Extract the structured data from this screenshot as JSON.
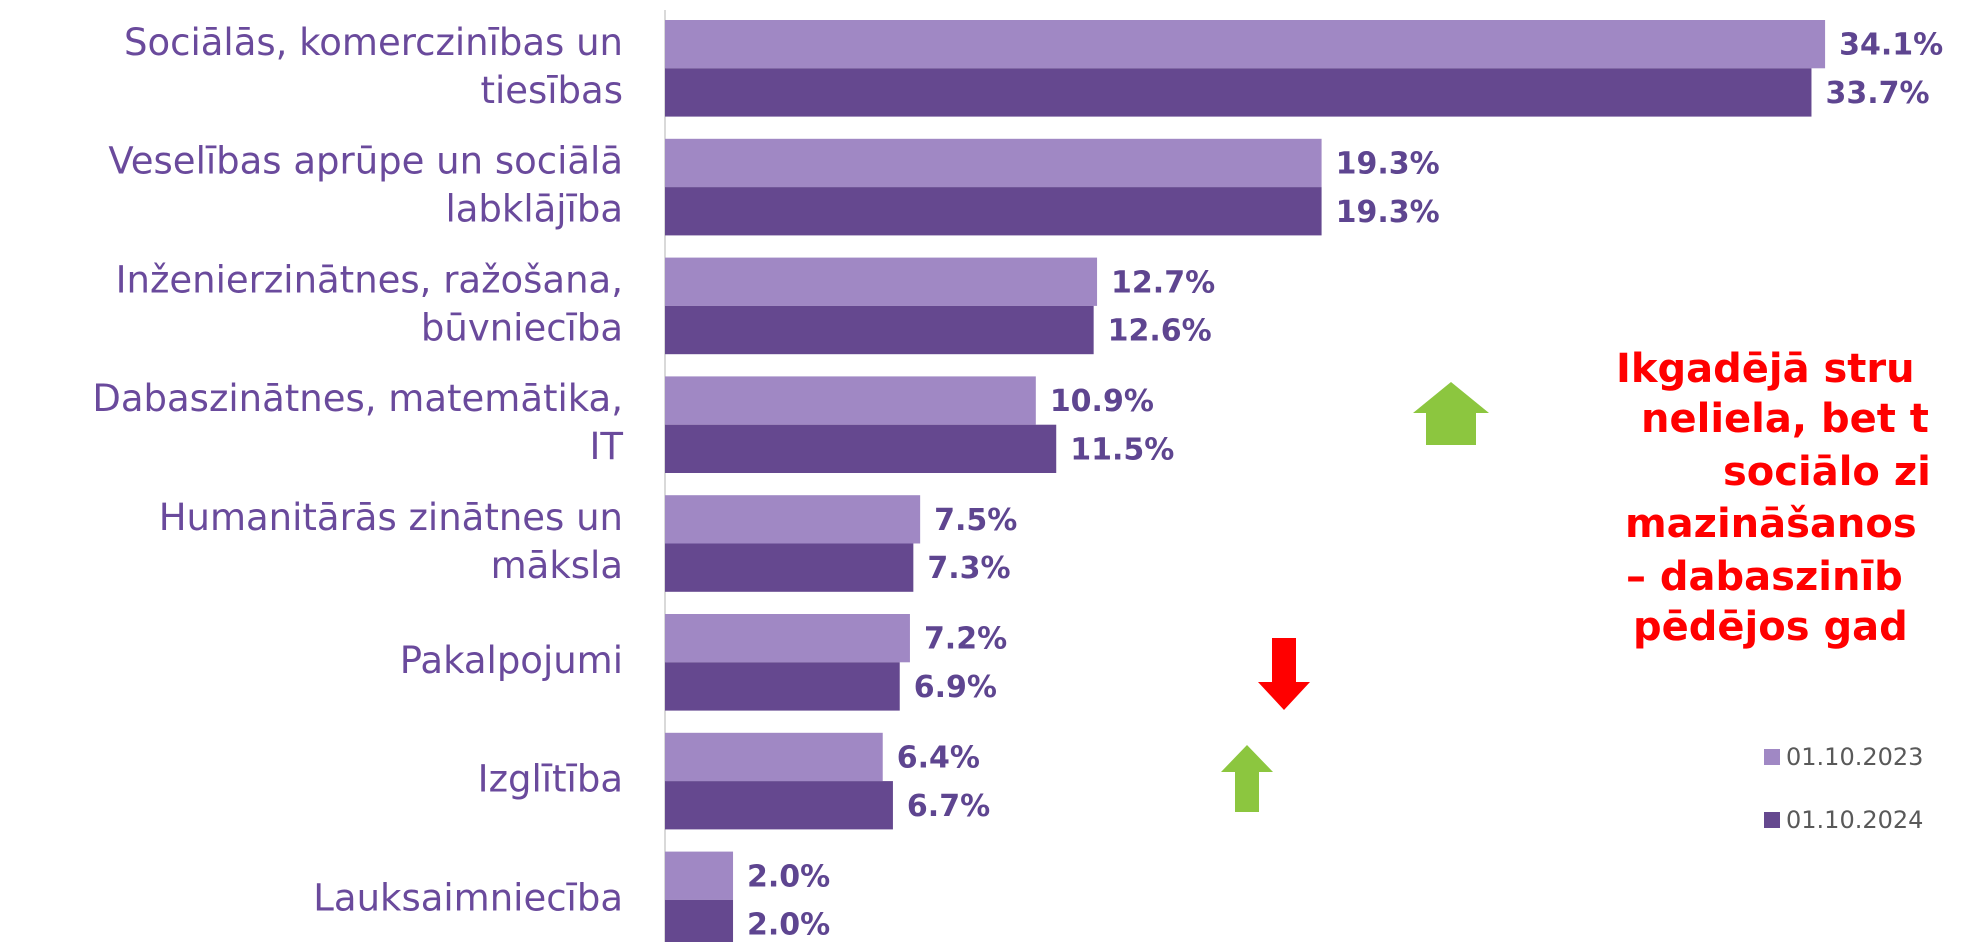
{
  "chart_data": {
    "type": "bar",
    "orientation": "horizontal",
    "categories": [
      "Sociālās, komerczinības un tiesības",
      "Veselības aprūpe un sociālā labklājība",
      "Inženierzinātnes, ražošana, būvniecība",
      "Dabaszinātnes, matemātika, IT",
      "Humanitārās zinātnes un māksla",
      "Pakalpojumi",
      "Izglītība",
      "Lauksaimniecība"
    ],
    "category_lines": [
      [
        "Sociālās, komerczinības un",
        "tiesības"
      ],
      [
        "Veselības aprūpe un sociālā",
        "labklājība"
      ],
      [
        "Inženierzinātnes, ražošana,",
        "būvniecība"
      ],
      [
        "Dabaszinātnes, matemātika,",
        "IT"
      ],
      [
        "Humanitārās zinātnes un",
        "māksla"
      ],
      [
        "Pakalpojumi"
      ],
      [
        "Izglītība"
      ],
      [
        "Lauksaimniecība"
      ]
    ],
    "series": [
      {
        "name": "01.10.2023",
        "color": "#a088c4",
        "values": [
          34.1,
          19.3,
          12.7,
          10.9,
          7.5,
          7.2,
          6.4,
          2.0
        ],
        "value_labels": [
          "34.1%",
          "19.3%",
          "12.7%",
          "10.9%",
          "7.5%",
          "7.2%",
          "6.4%",
          "2.0%"
        ]
      },
      {
        "name": "01.10.2024",
        "color": "#65488f",
        "values": [
          33.7,
          19.3,
          12.6,
          11.5,
          7.3,
          6.9,
          6.7,
          2.0
        ],
        "value_labels": [
          "33.7%",
          "19.3%",
          "12.6%",
          "11.5%",
          "7.3%",
          "6.9%",
          "6.7%",
          "2.0%"
        ]
      }
    ],
    "annotation": [
      "Ikgadējā stru",
      "neliela, bet t",
      "sociālo zi",
      "mazināšanos",
      "– dabaszinīb",
      "pēdējos gad"
    ],
    "annotation_color": "#ff0000",
    "legend": "right"
  }
}
